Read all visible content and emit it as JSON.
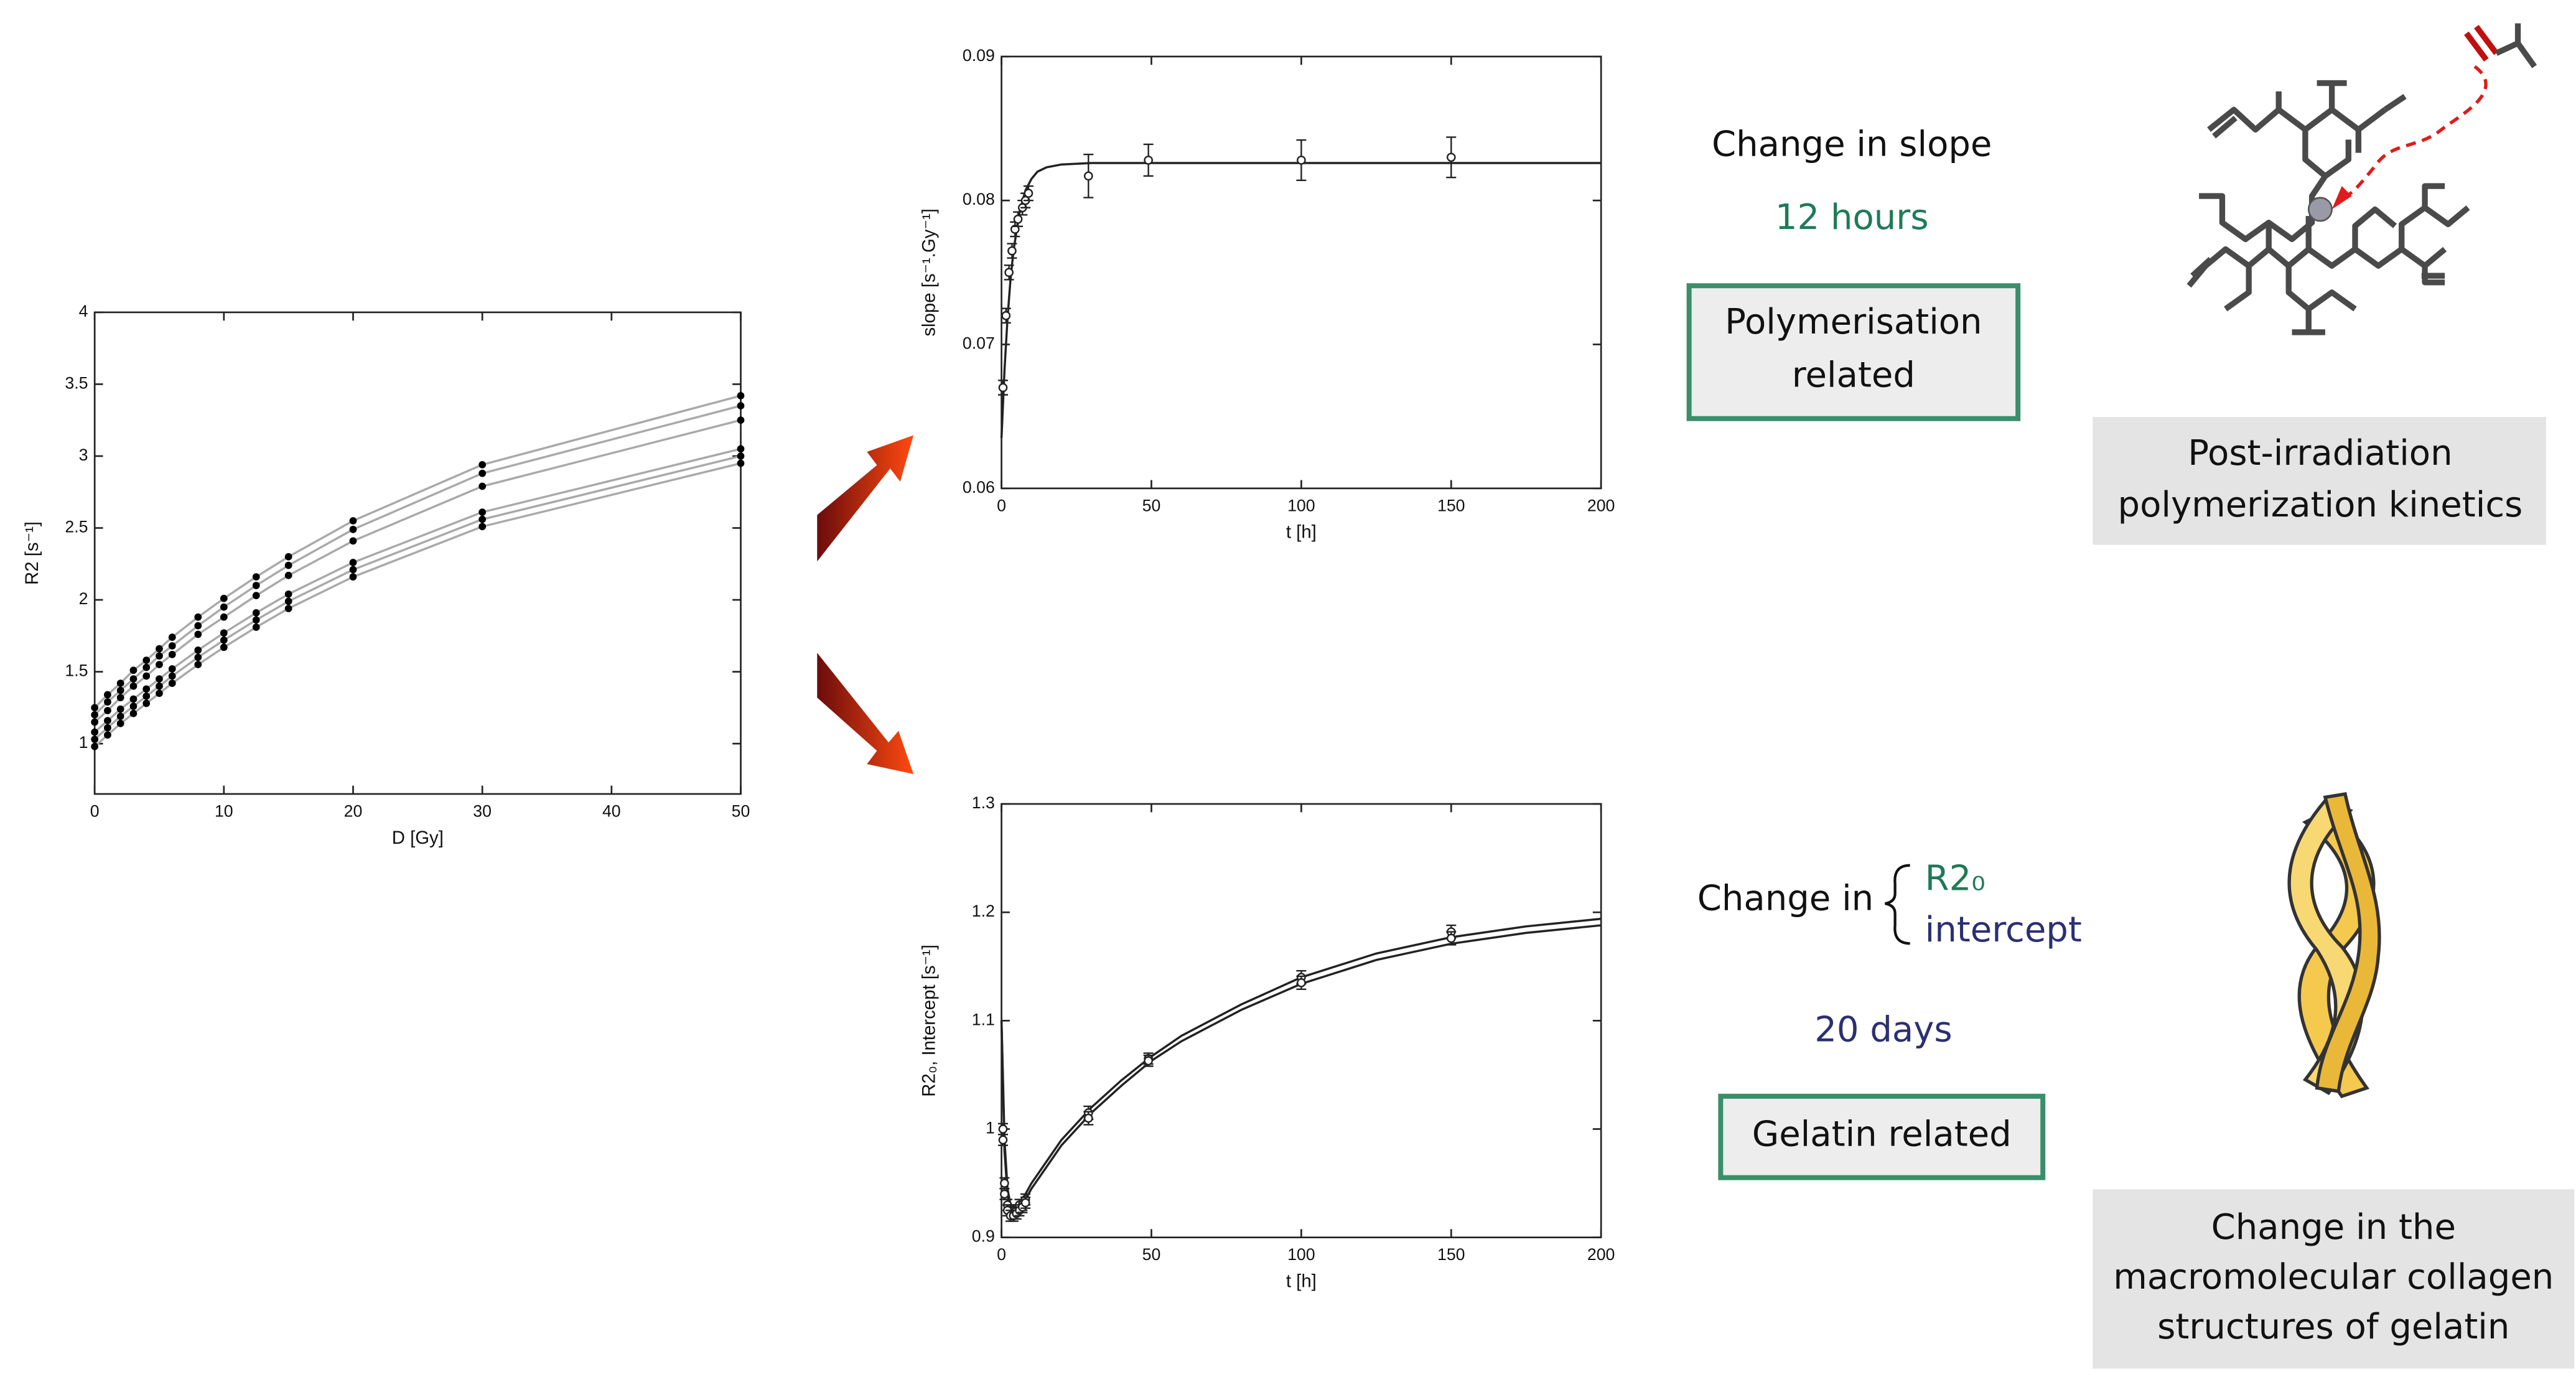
{
  "chart_data": [
    {
      "type": "line",
      "xlabel": "D [Gy]",
      "ylabel": "R2 [s⁻¹]",
      "x": [
        0,
        1,
        2,
        3,
        4,
        5,
        6,
        8,
        10,
        12.5,
        15,
        20,
        30,
        50
      ],
      "series": [
        {
          "color": "#a9a9a9",
          "marker_color": "#000000",
          "values": [
            0.98,
            1.06,
            1.14,
            1.21,
            1.28,
            1.35,
            1.42,
            1.55,
            1.67,
            1.81,
            1.94,
            2.16,
            2.51,
            2.95
          ]
        },
        {
          "color": "#a9a9a9",
          "marker_color": "#000000",
          "values": [
            1.03,
            1.11,
            1.19,
            1.26,
            1.33,
            1.4,
            1.47,
            1.6,
            1.72,
            1.86,
            1.99,
            2.21,
            2.56,
            3.0
          ]
        },
        {
          "color": "#a9a9a9",
          "marker_color": "#000000",
          "values": [
            1.08,
            1.16,
            1.24,
            1.31,
            1.38,
            1.45,
            1.52,
            1.65,
            1.77,
            1.91,
            2.04,
            2.26,
            2.61,
            3.05
          ]
        },
        {
          "color": "#a9a9a9",
          "marker_color": "#000000",
          "values": [
            1.15,
            1.23,
            1.32,
            1.4,
            1.47,
            1.55,
            1.62,
            1.76,
            1.88,
            2.03,
            2.17,
            2.41,
            2.79,
            3.25
          ]
        },
        {
          "color": "#a9a9a9",
          "marker_color": "#000000",
          "values": [
            1.2,
            1.29,
            1.37,
            1.45,
            1.53,
            1.61,
            1.68,
            1.82,
            1.95,
            2.1,
            2.24,
            2.49,
            2.88,
            3.35
          ]
        },
        {
          "color": "#a9a9a9",
          "marker_color": "#000000",
          "values": [
            1.25,
            1.34,
            1.42,
            1.51,
            1.58,
            1.66,
            1.74,
            1.88,
            2.01,
            2.16,
            2.3,
            2.55,
            2.94,
            3.42
          ]
        }
      ],
      "xlim": [
        0,
        50
      ],
      "xticks": [
        0,
        10,
        20,
        30,
        40,
        50
      ],
      "ylim": [
        0.65,
        4
      ],
      "yticks": [
        1,
        1.5,
        2,
        2.5,
        3,
        3.5,
        4
      ]
    },
    {
      "type": "errorbar",
      "xlabel": "t [h]",
      "ylabel": "slope [s⁻¹.Gy⁻¹]",
      "color": "#222222",
      "sets": [
        {
          "x": [
            0.5,
            1.5,
            2.5,
            3.5,
            4.5,
            5.5,
            7,
            8,
            9,
            29,
            49,
            100,
            150
          ],
          "values": [
            0.067,
            0.072,
            0.075,
            0.0765,
            0.078,
            0.0787,
            0.0795,
            0.08,
            0.0805,
            0.0817,
            0.0828,
            0.0828,
            0.083
          ],
          "errors": [
            0.0005,
            0.0005,
            0.0005,
            0.0005,
            0.0005,
            0.0005,
            0.0005,
            0.0005,
            0.0005,
            0.0015,
            0.0011,
            0.0014,
            0.0014
          ]
        }
      ],
      "fits": [
        {
          "x": [
            0,
            1,
            2,
            3,
            4,
            6,
            8,
            10,
            12,
            15,
            20,
            30,
            50,
            100,
            150,
            200
          ],
          "values": [
            0.0635,
            0.0682,
            0.0718,
            0.0745,
            0.0765,
            0.0792,
            0.0807,
            0.0815,
            0.082,
            0.0823,
            0.0825,
            0.0826,
            0.0826,
            0.0826,
            0.0826,
            0.0826
          ]
        }
      ],
      "xlim": [
        0,
        200
      ],
      "xticks": [
        0,
        50,
        100,
        150,
        200
      ],
      "ylim": [
        0.06,
        0.09
      ],
      "yticks": [
        0.06,
        0.07,
        0.08,
        0.09
      ]
    },
    {
      "type": "errorbar",
      "xlabel": "t [h]",
      "ylabel": "R2₀, Intercept [s⁻¹]",
      "color": "#222222",
      "sets": [
        {
          "x": [
            0.5,
            1,
            2,
            3,
            4,
            5,
            6,
            7,
            8,
            29,
            49,
            100,
            150
          ],
          "values": [
            1.0,
            0.95,
            0.93,
            0.925,
            0.925,
            0.925,
            0.93,
            0.93,
            0.935,
            1.015,
            1.065,
            1.14,
            1.182
          ],
          "errors": [
            0.005,
            0.005,
            0.005,
            0.005,
            0.005,
            0.005,
            0.005,
            0.005,
            0.005,
            0.006,
            0.005,
            0.006,
            0.006
          ]
        },
        {
          "x": [
            0.5,
            1,
            2,
            3,
            4,
            5,
            6,
            7,
            8,
            29,
            49,
            100,
            150
          ],
          "values": [
            0.99,
            0.94,
            0.925,
            0.92,
            0.92,
            0.922,
            0.925,
            0.928,
            0.932,
            1.01,
            1.063,
            1.135,
            1.176
          ],
          "errors": [
            0.005,
            0.005,
            0.005,
            0.005,
            0.005,
            0.005,
            0.005,
            0.005,
            0.005,
            0.006,
            0.005,
            0.006,
            0.006
          ]
        }
      ],
      "fits": [
        {
          "x": [
            0,
            1,
            2,
            3,
            4,
            6,
            8,
            10,
            15,
            20,
            30,
            40,
            50,
            60,
            80,
            100,
            125,
            150,
            175,
            200
          ],
          "values": [
            1.1,
            0.99,
            0.945,
            0.93,
            0.925,
            0.93,
            0.94,
            0.95,
            0.97,
            0.99,
            1.02,
            1.045,
            1.067,
            1.086,
            1.115,
            1.14,
            1.162,
            1.177,
            1.187,
            1.194
          ]
        },
        {
          "x": [
            0,
            1,
            2,
            3,
            4,
            6,
            8,
            10,
            15,
            20,
            30,
            40,
            50,
            60,
            80,
            100,
            125,
            150,
            175,
            200
          ],
          "values": [
            1.1,
            0.98,
            0.94,
            0.925,
            0.92,
            0.925,
            0.935,
            0.945,
            0.965,
            0.985,
            1.015,
            1.04,
            1.063,
            1.081,
            1.11,
            1.134,
            1.156,
            1.171,
            1.181,
            1.188
          ]
        }
      ],
      "xlim": [
        0,
        200
      ],
      "xticks": [
        0,
        50,
        100,
        150,
        200
      ],
      "ylim": [
        0.9,
        1.3
      ],
      "yticks": [
        0.9,
        1,
        1.1,
        1.2,
        1.3
      ]
    }
  ],
  "texts": {
    "slope_change": "Change in slope",
    "slope_time": "12 hours",
    "polymer_box": [
      "Polymerisation",
      "related"
    ],
    "polymer_caption": [
      "Post-irradiation",
      "polymerization kinetics"
    ],
    "intercept_change": "Change in",
    "intercept_r2": "R2₀",
    "intercept_word": "intercept",
    "intercept_time": "20 days",
    "gelatin_box": "Gelatin related",
    "gelatin_caption": [
      "Change in the",
      "macromolecular collagen",
      "structures of gelatin"
    ]
  }
}
